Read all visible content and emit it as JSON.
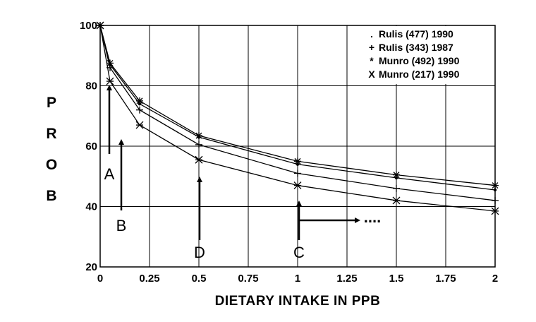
{
  "chart_data": {
    "type": "line",
    "xlabel": "DIETARY INTAKE IN PPB",
    "ylabel": "PROB",
    "xlim": [
      0,
      2
    ],
    "ylim": [
      20,
      100
    ],
    "xticks": [
      0,
      0.25,
      0.5,
      0.75,
      1,
      1.25,
      1.5,
      1.75,
      2
    ],
    "xtick_labels": [
      "0",
      "0.25",
      "0.5",
      "0.75",
      "1",
      "1.25",
      "1.5",
      "1.75",
      "2"
    ],
    "yticks": [
      20,
      40,
      60,
      80,
      100
    ],
    "ytick_labels": [
      "20",
      "40",
      "60",
      "80",
      "100"
    ],
    "grid": true,
    "legend_position": "top-right",
    "series": [
      {
        "name": "Rulis (477) 1990",
        "marker": "dot",
        "x": [
          0,
          0.05,
          0.2,
          0.5,
          1,
          1.5,
          2
        ],
        "y": [
          100,
          87,
          74,
          63,
          54,
          49.5,
          45.5
        ]
      },
      {
        "name": "Rulis (343) 1987",
        "marker": "plus",
        "x": [
          0,
          0.05,
          0.2,
          0.5,
          1,
          1.5,
          2
        ],
        "y": [
          100,
          86,
          72,
          60.5,
          51,
          46,
          42
        ]
      },
      {
        "name": "Munro (492) 1990",
        "marker": "star",
        "x": [
          0,
          0.05,
          0.2,
          0.5,
          1,
          1.5,
          2
        ],
        "y": [
          100,
          87.5,
          75,
          63.5,
          55,
          50.5,
          47
        ]
      },
      {
        "name": "Munro (217) 1990",
        "marker": "x",
        "x": [
          0,
          0.05,
          0.2,
          0.5,
          1,
          1.5,
          2
        ],
        "y": [
          100,
          81.5,
          67,
          55.5,
          47,
          42,
          38.5
        ]
      }
    ],
    "legend": [
      {
        "symbol": ".",
        "label": "Rulis (477) 1990"
      },
      {
        "symbol": "+",
        "label": "Rulis (343) 1987"
      },
      {
        "symbol": "*",
        "label": "Munro (492) 1990"
      },
      {
        "symbol": "X",
        "label": "Munro (217) 1990"
      }
    ],
    "annotations": [
      {
        "label": "A",
        "x": 0.03
      },
      {
        "label": "B",
        "x": 0.1
      },
      {
        "label": "D",
        "x": 0.5
      },
      {
        "label": "C",
        "x": 1
      },
      {
        "label": "...."
      }
    ]
  }
}
